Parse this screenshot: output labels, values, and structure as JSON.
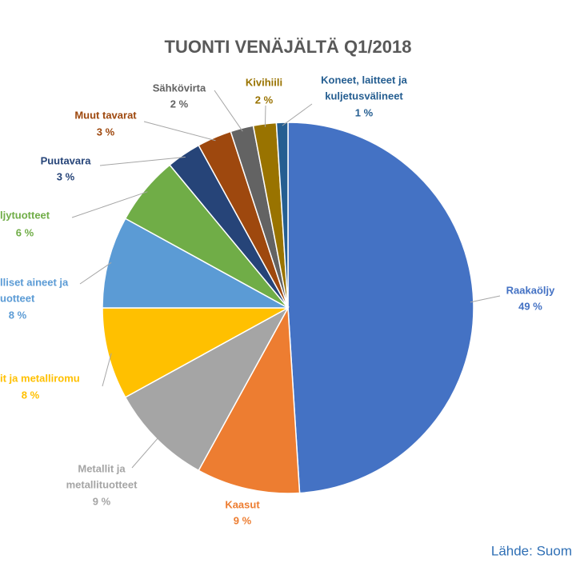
{
  "chart_data": {
    "type": "pie",
    "title": "TUONTI VENÄJÄLTÄ Q1/2018",
    "categories": [
      [
        "Raakaöljy"
      ],
      [
        "Kaasut"
      ],
      [
        "Metallit ja",
        "metallituotteet"
      ],
      [
        "it ja metalliromu"
      ],
      [
        "lliset aineet ja",
        "uotteet"
      ],
      [
        "ljytuotteet"
      ],
      [
        "Puutavara"
      ],
      [
        "Muut tavarat"
      ],
      [
        "Sähkövirta"
      ],
      [
        "Kivihiili"
      ],
      [
        "Koneet, laitteet ja",
        "kuljetusvälineet"
      ]
    ],
    "values": [
      49,
      9,
      9,
      8,
      8,
      6,
      3,
      3,
      2,
      2,
      1
    ],
    "value_labels": [
      "49 %",
      "9 %",
      "9 %",
      "8 %",
      "8 %",
      "6 %",
      "3 %",
      "3 %",
      "2 %",
      "2 %",
      "1 %"
    ],
    "colors": [
      "#4472c4",
      "#ed7d31",
      "#a5a5a5",
      "#ffc000",
      "#5b9bd5",
      "#70ad47",
      "#264478",
      "#9e480e",
      "#636363",
      "#997300",
      "#255e91"
    ],
    "source": "Lähde: Suom"
  }
}
